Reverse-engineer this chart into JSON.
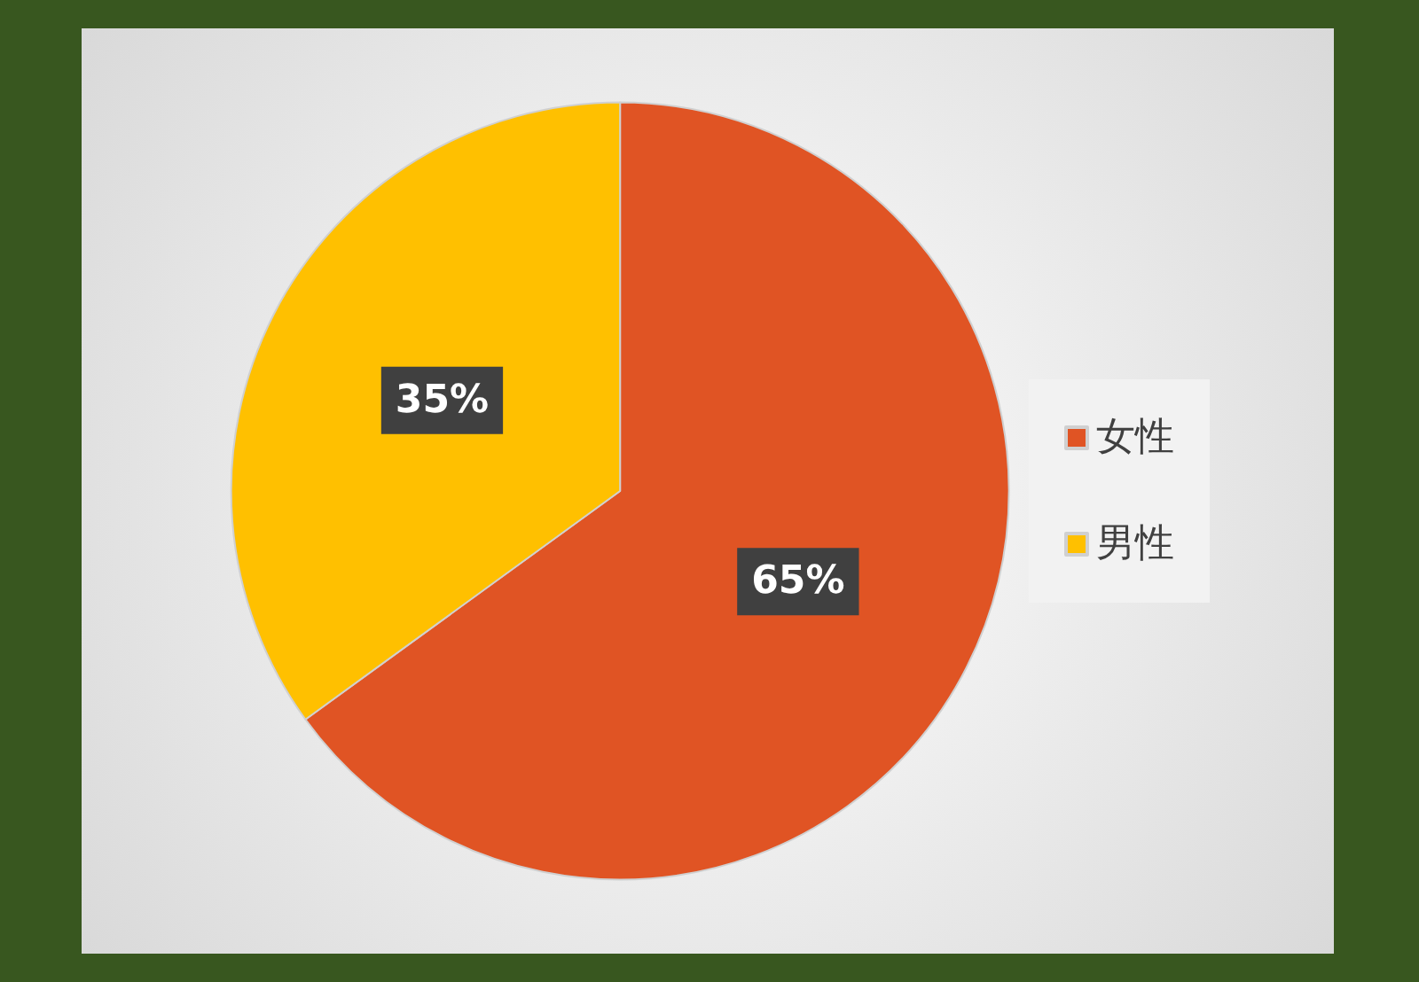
{
  "chart_data": {
    "type": "pie",
    "categories": [
      "女性",
      "男性"
    ],
    "values": [
      65,
      35
    ],
    "colors": [
      "#e05424",
      "#ffc000"
    ],
    "value_labels": [
      "65%",
      "35%"
    ],
    "legend": "right"
  }
}
